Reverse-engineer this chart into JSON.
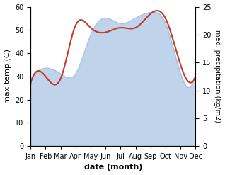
{
  "months": [
    "Jan",
    "Feb",
    "Mar",
    "Apr",
    "May",
    "Jun",
    "Jul",
    "Aug",
    "Sep",
    "Oct",
    "Nov",
    "Dec"
  ],
  "x": [
    0,
    1,
    2,
    3,
    4,
    5,
    6,
    7,
    8,
    9,
    10,
    11
  ],
  "temp": [
    27,
    30,
    29,
    52,
    51,
    49,
    51,
    51,
    57,
    55,
    35,
    30
  ],
  "precip": [
    12,
    14,
    13,
    13,
    20,
    23,
    22,
    23,
    24,
    22,
    13,
    13
  ],
  "temp_color": "#c0392b",
  "precip_fill_color": "#b8cfe8",
  "precip_line_color": "#8aaac8",
  "left_ylabel": "max temp (C)",
  "right_ylabel": "med. precipitation (kg/m2)",
  "xlabel": "date (month)",
  "ylim_left": [
    0,
    60
  ],
  "ylim_right": [
    0,
    25
  ],
  "yticks_left": [
    0,
    10,
    20,
    30,
    40,
    50,
    60
  ],
  "yticks_right": [
    0,
    5,
    10,
    15,
    20,
    25
  ],
  "bg_color": "#ffffff"
}
